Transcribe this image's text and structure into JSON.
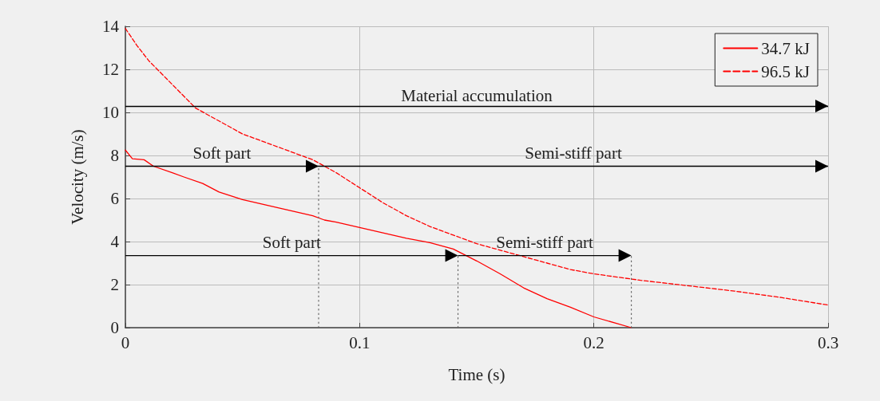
{
  "chart_data": {
    "type": "line",
    "xlabel": "Time (s)",
    "ylabel": "Velocity (m/s)",
    "xlim": [
      0,
      0.3
    ],
    "xticks": [
      0,
      0.1,
      0.2,
      0.3
    ],
    "ylim": [
      0,
      14
    ],
    "yticks": [
      0,
      2,
      4,
      6,
      8,
      10,
      12,
      14
    ],
    "grid": true,
    "legend": "top right",
    "marker": "none",
    "series": [
      {
        "name": "34.7 kJ",
        "color": "#ff0000",
        "line_style": "solid",
        "x": [
          0,
          0.003,
          0.008,
          0.012,
          0.02,
          0.025,
          0.033,
          0.04,
          0.05,
          0.06,
          0.07,
          0.08,
          0.085,
          0.09,
          0.1,
          0.11,
          0.12,
          0.13,
          0.14,
          0.15,
          0.16,
          0.17,
          0.18,
          0.19,
          0.2,
          0.216
        ],
        "values": [
          8.25,
          7.85,
          7.8,
          7.5,
          7.2,
          7.0,
          6.7,
          6.3,
          5.95,
          5.7,
          5.45,
          5.2,
          5.0,
          4.9,
          4.65,
          4.4,
          4.15,
          3.95,
          3.65,
          3.1,
          2.5,
          1.85,
          1.35,
          0.95,
          0.5,
          0
        ]
      },
      {
        "name": "96.5 kJ",
        "color": "#ff0000",
        "line_style": "dashed",
        "x": [
          0,
          0.005,
          0.01,
          0.02,
          0.03,
          0.04,
          0.05,
          0.06,
          0.07,
          0.08,
          0.09,
          0.1,
          0.11,
          0.12,
          0.13,
          0.14,
          0.15,
          0.16,
          0.17,
          0.18,
          0.19,
          0.2,
          0.21,
          0.22,
          0.24,
          0.26,
          0.28,
          0.3
        ],
        "values": [
          13.9,
          13.1,
          12.4,
          11.3,
          10.2,
          9.6,
          9.0,
          8.6,
          8.2,
          7.8,
          7.2,
          6.5,
          5.8,
          5.2,
          4.7,
          4.3,
          3.9,
          3.6,
          3.3,
          3.0,
          2.7,
          2.5,
          2.35,
          2.2,
          1.95,
          1.7,
          1.4,
          1.05
        ]
      },
      {
        "color": "#666666",
        "line_style": "dotted",
        "x": [
          0.0825,
          0.0825
        ],
        "values": [
          0,
          7.5
        ]
      },
      {
        "color": "#666666",
        "line_style": "dotted",
        "x": [
          0.142,
          0.142
        ],
        "values": [
          0,
          3.35
        ]
      },
      {
        "color": "#666666",
        "line_style": "dotted",
        "x": [
          0.216,
          0.216
        ],
        "values": [
          0,
          3.35
        ]
      }
    ],
    "ref_lines": [
      {
        "axis": "y",
        "value": 10.3,
        "label": "Material accumulation",
        "color": "#000000"
      },
      {
        "axis": "y",
        "value": 7.5,
        "color": "#000000"
      }
    ],
    "annotations": [
      "Soft part",
      "Semi-stiff part",
      "Soft part",
      "Semi-stiff part"
    ]
  }
}
